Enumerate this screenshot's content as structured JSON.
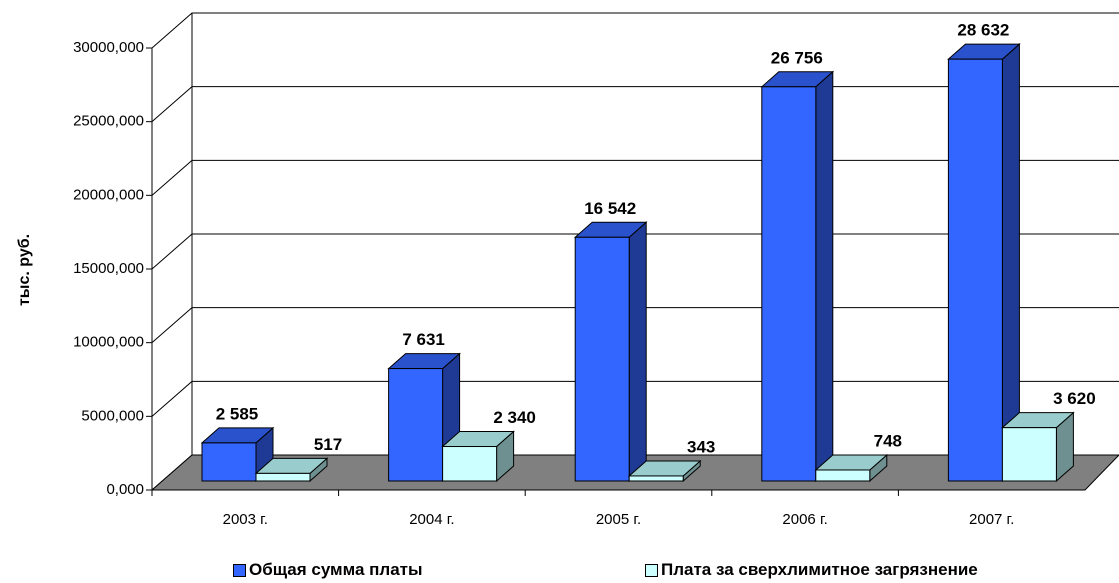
{
  "chart_data": {
    "type": "bar3d",
    "y_label": "тыс. руб.",
    "categories": [
      "2003 г.",
      "2004 г.",
      "2005 г.",
      "2006 г.",
      "2007 г."
    ],
    "series": [
      {
        "name": "Общая сумма платы",
        "color": "#3366ff",
        "values": [
          2585,
          7631,
          16542,
          26756,
          28632
        ],
        "value_labels": [
          "2 585",
          "7 631",
          "16 542",
          "26 756",
          "28 632"
        ]
      },
      {
        "name": "Плата за сверхлимитное загрязнение",
        "color": "#ccffff",
        "values": [
          517,
          2340,
          343,
          748,
          3620
        ],
        "value_labels": [
          "517",
          "2 340",
          "343",
          "748",
          "3 620"
        ]
      }
    ],
    "ylim": [
      0,
      30000
    ],
    "yticks": [
      {
        "value": 0,
        "label": "0,000"
      },
      {
        "value": 5000,
        "label": "5000,000"
      },
      {
        "value": 10000,
        "label": "10000,000"
      },
      {
        "value": 15000,
        "label": "15000,000"
      },
      {
        "value": 20000,
        "label": "20000,000"
      },
      {
        "value": 25000,
        "label": "25000,000"
      },
      {
        "value": 30000,
        "label": "30000,000"
      }
    ],
    "grid": true,
    "legend": "bottom"
  }
}
